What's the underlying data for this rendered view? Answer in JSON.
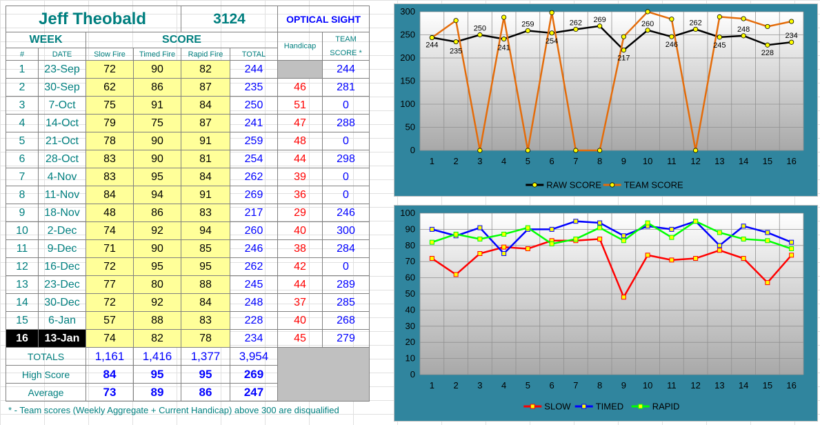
{
  "header": {
    "shooter_name": "Jeff Theobald",
    "shooter_id": "3124",
    "sight_type": "OPTICAL SIGHT"
  },
  "columns": {
    "week": "WEEK",
    "score": "SCORE",
    "handicap": "Handicap",
    "team_line1": "TEAM",
    "team_line2": "SCORE *",
    "num": "#",
    "date": "DATE",
    "slow": "Slow Fire",
    "timed": "Timed Fire",
    "rapid": "Rapid Fire",
    "total": "TOTAL"
  },
  "rows": [
    {
      "week": "1",
      "date": "23-Sep",
      "slow": "72",
      "timed": "90",
      "rapid": "82",
      "total": "244",
      "handicap": "",
      "team": "244"
    },
    {
      "week": "2",
      "date": "30-Sep",
      "slow": "62",
      "timed": "86",
      "rapid": "87",
      "total": "235",
      "handicap": "46",
      "team": "281"
    },
    {
      "week": "3",
      "date": "7-Oct",
      "slow": "75",
      "timed": "91",
      "rapid": "84",
      "total": "250",
      "handicap": "51",
      "team": "0"
    },
    {
      "week": "4",
      "date": "14-Oct",
      "slow": "79",
      "timed": "75",
      "rapid": "87",
      "total": "241",
      "handicap": "47",
      "team": "288"
    },
    {
      "week": "5",
      "date": "21-Oct",
      "slow": "78",
      "timed": "90",
      "rapid": "91",
      "total": "259",
      "handicap": "48",
      "team": "0"
    },
    {
      "week": "6",
      "date": "28-Oct",
      "slow": "83",
      "timed": "90",
      "rapid": "81",
      "total": "254",
      "handicap": "44",
      "team": "298"
    },
    {
      "week": "7",
      "date": "4-Nov",
      "slow": "83",
      "timed": "95",
      "rapid": "84",
      "total": "262",
      "handicap": "39",
      "team": "0"
    },
    {
      "week": "8",
      "date": "11-Nov",
      "slow": "84",
      "timed": "94",
      "rapid": "91",
      "total": "269",
      "handicap": "36",
      "team": "0"
    },
    {
      "week": "9",
      "date": "18-Nov",
      "slow": "48",
      "timed": "86",
      "rapid": "83",
      "total": "217",
      "handicap": "29",
      "team": "246"
    },
    {
      "week": "10",
      "date": "2-Dec",
      "slow": "74",
      "timed": "92",
      "rapid": "94",
      "total": "260",
      "handicap": "40",
      "team": "300"
    },
    {
      "week": "11",
      "date": "9-Dec",
      "slow": "71",
      "timed": "90",
      "rapid": "85",
      "total": "246",
      "handicap": "38",
      "team": "284"
    },
    {
      "week": "12",
      "date": "16-Dec",
      "slow": "72",
      "timed": "95",
      "rapid": "95",
      "total": "262",
      "handicap": "42",
      "team": "0"
    },
    {
      "week": "13",
      "date": "23-Dec",
      "slow": "77",
      "timed": "80",
      "rapid": "88",
      "total": "245",
      "handicap": "44",
      "team": "289"
    },
    {
      "week": "14",
      "date": "30-Dec",
      "slow": "72",
      "timed": "92",
      "rapid": "84",
      "total": "248",
      "handicap": "37",
      "team": "285"
    },
    {
      "week": "15",
      "date": "6-Jan",
      "slow": "57",
      "timed": "88",
      "rapid": "83",
      "total": "228",
      "handicap": "40",
      "team": "268"
    },
    {
      "week": "16",
      "date": "13-Jan",
      "slow": "74",
      "timed": "82",
      "rapid": "78",
      "total": "234",
      "handicap": "45",
      "team": "279"
    }
  ],
  "summary": {
    "totals_label": "TOTALS",
    "totals": {
      "slow": "1,161",
      "timed": "1,416",
      "rapid": "1,377",
      "total": "3,954"
    },
    "high_label": "High Score",
    "high": {
      "slow": "84",
      "timed": "95",
      "rapid": "95",
      "total": "269"
    },
    "avg_label": "Average",
    "avg": {
      "slow": "73",
      "timed": "89",
      "rapid": "86",
      "total": "247"
    }
  },
  "footnote": "* - Team scores (Weekly Aggregate + Current Handicap) above 300 are disqualified",
  "colors": {
    "chart_bg": "#30859e",
    "raw": "#000000",
    "team": "#e46c0a",
    "slow": "#ff0000",
    "timed": "#0000ff",
    "rapid": "#00ff00",
    "marker": "#ffff00"
  },
  "chart_data": [
    {
      "type": "line",
      "x": [
        1,
        2,
        3,
        4,
        5,
        6,
        7,
        8,
        9,
        10,
        11,
        12,
        13,
        14,
        15,
        16
      ],
      "ylim": [
        0,
        300
      ],
      "yticks": [
        0,
        50,
        100,
        150,
        200,
        250,
        300
      ],
      "grid": true,
      "legend": "bottom",
      "series": [
        {
          "name": "RAW SCORE",
          "values": [
            244,
            235,
            250,
            241,
            259,
            254,
            262,
            269,
            217,
            260,
            246,
            262,
            245,
            248,
            228,
            234
          ]
        },
        {
          "name": "TEAM SCORE",
          "values": [
            244,
            281,
            0,
            288,
            0,
            298,
            0,
            0,
            246,
            300,
            284,
            0,
            289,
            285,
            268,
            279
          ]
        }
      ],
      "data_labels": [
        "244",
        "235",
        "250",
        "241",
        "259",
        "254",
        "262",
        "269",
        "217",
        "260",
        "246",
        "262",
        "245",
        "248",
        "228",
        "234"
      ]
    },
    {
      "type": "line",
      "x": [
        1,
        2,
        3,
        4,
        5,
        6,
        7,
        8,
        9,
        10,
        11,
        12,
        13,
        14,
        15,
        16
      ],
      "ylim": [
        0,
        100
      ],
      "yticks": [
        0,
        10,
        20,
        30,
        40,
        50,
        60,
        70,
        80,
        90,
        100
      ],
      "grid": true,
      "legend": "bottom",
      "series": [
        {
          "name": "SLOW",
          "values": [
            72,
            62,
            75,
            79,
            78,
            83,
            83,
            84,
            48,
            74,
            71,
            72,
            77,
            72,
            57,
            74
          ]
        },
        {
          "name": "TIMED",
          "values": [
            90,
            86,
            91,
            75,
            90,
            90,
            95,
            94,
            86,
            92,
            90,
            95,
            80,
            92,
            88,
            82
          ]
        },
        {
          "name": "RAPID",
          "values": [
            82,
            87,
            84,
            87,
            91,
            81,
            84,
            91,
            83,
            94,
            85,
            95,
            88,
            84,
            83,
            78
          ]
        }
      ]
    }
  ]
}
